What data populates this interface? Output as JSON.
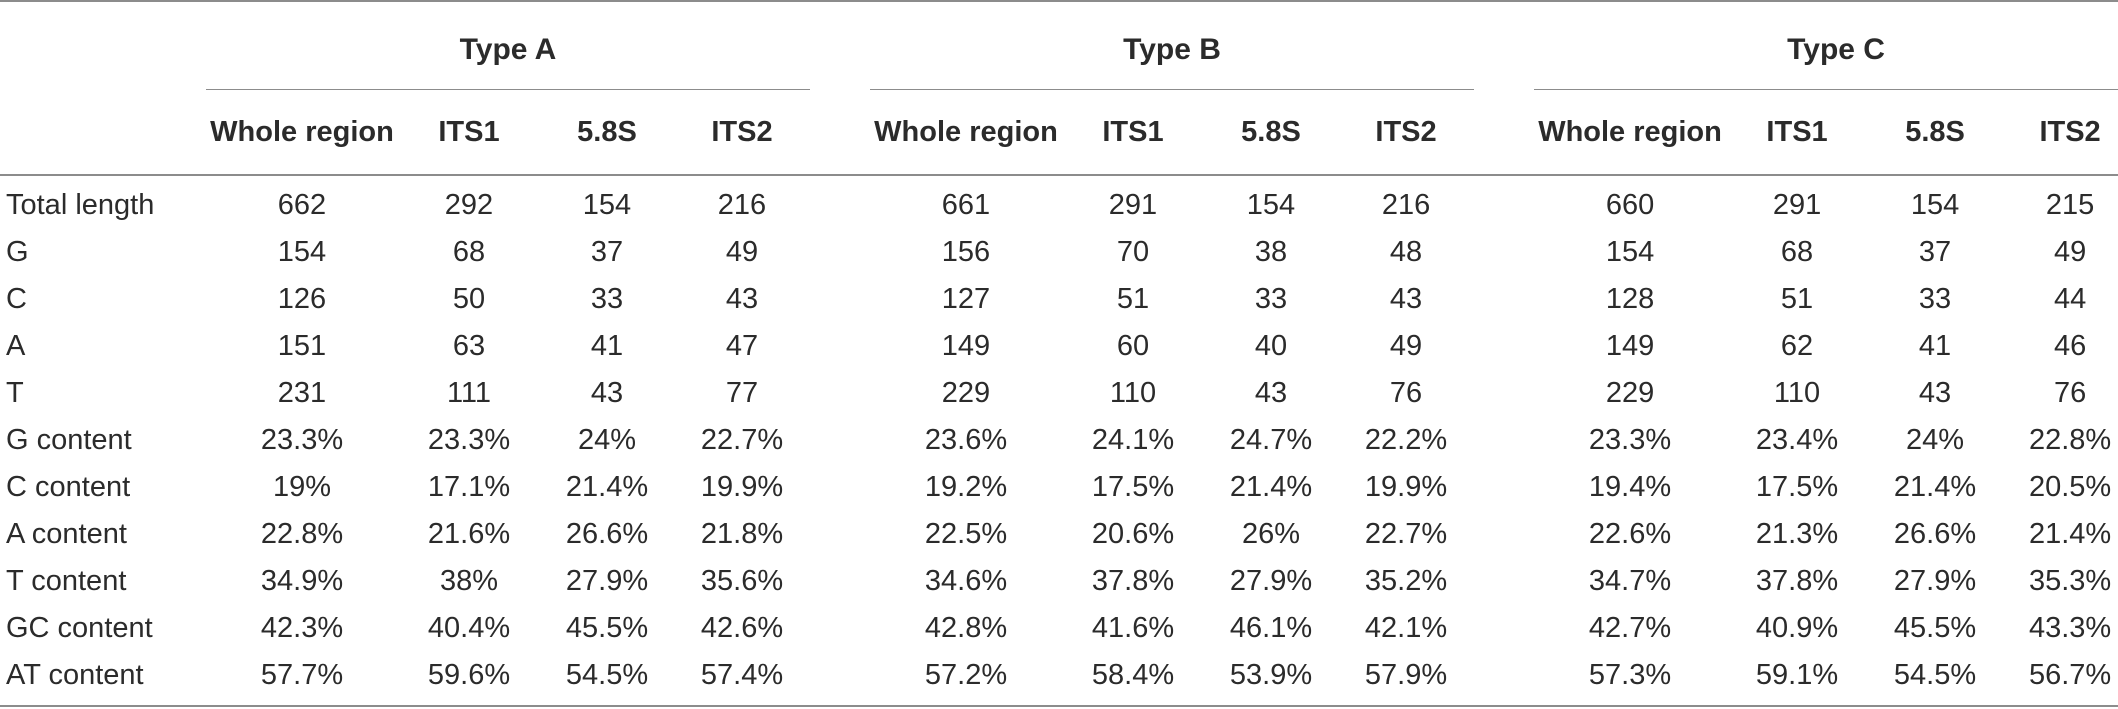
{
  "groups": [
    "Type A",
    "Type B",
    "Type C"
  ],
  "subheaders": [
    "Whole region",
    "ITS1",
    "5.8S",
    "ITS2"
  ],
  "rows": [
    {
      "label": "Total length",
      "values": [
        "662",
        "292",
        "154",
        "216",
        "661",
        "291",
        "154",
        "216",
        "660",
        "291",
        "154",
        "215"
      ]
    },
    {
      "label": "G",
      "values": [
        "154",
        "68",
        "37",
        "49",
        "156",
        "70",
        "38",
        "48",
        "154",
        "68",
        "37",
        "49"
      ]
    },
    {
      "label": "C",
      "values": [
        "126",
        "50",
        "33",
        "43",
        "127",
        "51",
        "33",
        "43",
        "128",
        "51",
        "33",
        "44"
      ]
    },
    {
      "label": "A",
      "values": [
        "151",
        "63",
        "41",
        "47",
        "149",
        "60",
        "40",
        "49",
        "149",
        "62",
        "41",
        "46"
      ]
    },
    {
      "label": "T",
      "values": [
        "231",
        "111",
        "43",
        "77",
        "229",
        "110",
        "43",
        "76",
        "229",
        "110",
        "43",
        "76"
      ]
    },
    {
      "label": "G content",
      "values": [
        "23.3%",
        "23.3%",
        "24%",
        "22.7%",
        "23.6%",
        "24.1%",
        "24.7%",
        "22.2%",
        "23.3%",
        "23.4%",
        "24%",
        "22.8%"
      ]
    },
    {
      "label": "C content",
      "values": [
        "19%",
        "17.1%",
        "21.4%",
        "19.9%",
        "19.2%",
        "17.5%",
        "21.4%",
        "19.9%",
        "19.4%",
        "17.5%",
        "21.4%",
        "20.5%"
      ]
    },
    {
      "label": "A content",
      "values": [
        "22.8%",
        "21.6%",
        "26.6%",
        "21.8%",
        "22.5%",
        "20.6%",
        "26%",
        "22.7%",
        "22.6%",
        "21.3%",
        "26.6%",
        "21.4%"
      ]
    },
    {
      "label": "T content",
      "values": [
        "34.9%",
        "38%",
        "27.9%",
        "35.6%",
        "34.6%",
        "37.8%",
        "27.9%",
        "35.2%",
        "34.7%",
        "37.8%",
        "27.9%",
        "35.3%"
      ]
    },
    {
      "label": "GC content",
      "values": [
        "42.3%",
        "40.4%",
        "45.5%",
        "42.6%",
        "42.8%",
        "41.6%",
        "46.1%",
        "42.1%",
        "42.7%",
        "40.9%",
        "45.5%",
        "43.3%"
      ]
    },
    {
      "label": "AT content",
      "values": [
        "57.7%",
        "59.6%",
        "54.5%",
        "57.4%",
        "57.2%",
        "58.4%",
        "53.9%",
        "57.9%",
        "57.3%",
        "59.1%",
        "54.5%",
        "56.7%"
      ]
    }
  ]
}
